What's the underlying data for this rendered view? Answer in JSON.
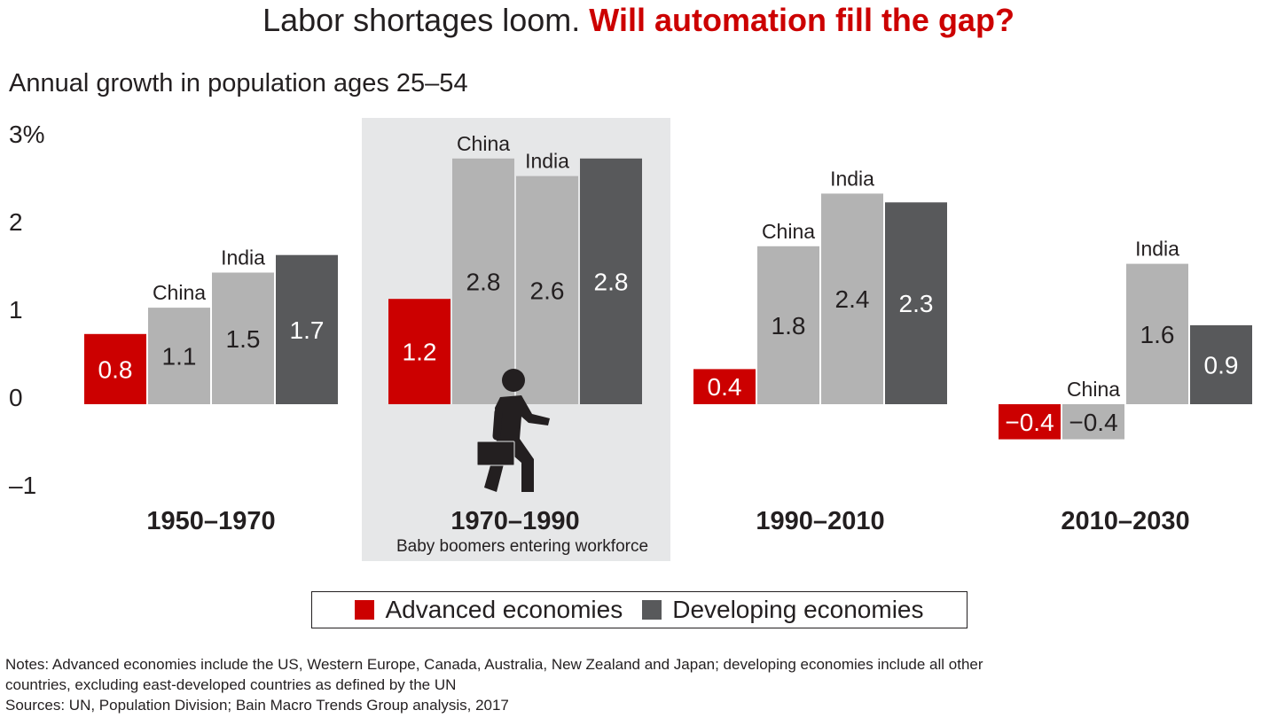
{
  "title": {
    "part1": "Labor shortages loom. ",
    "part2": "Will automation fill the gap?"
  },
  "chart_data": {
    "type": "bar",
    "title": "Labor shortages loom. Will automation fill the gap?",
    "ylabel": "Annual growth in population ages 25–54",
    "ylim": [
      -1,
      3
    ],
    "yticks": [
      "3%",
      "2",
      "1",
      "0",
      "–1"
    ],
    "ytick_values": [
      3,
      2,
      1,
      0,
      -1
    ],
    "categories": [
      "1950–1970",
      "1970–1990",
      "1990–2010",
      "2010–2030"
    ],
    "highlight": {
      "category": "1970–1990",
      "annotation": "Baby boomers entering workforce",
      "icon": "walking-businessman-icon"
    },
    "bar_labels": [
      "",
      "China",
      "India",
      ""
    ],
    "series": [
      {
        "name": "Advanced economies",
        "color": "#cc0000",
        "values": [
          0.8,
          1.2,
          0.4,
          -0.4
        ],
        "labels": [
          "0.8",
          "1.2",
          "0.4",
          "−0.4"
        ]
      },
      {
        "name": "China",
        "color": "#b3b3b3",
        "values": [
          1.1,
          2.8,
          1.8,
          -0.4
        ],
        "labels": [
          "1.1",
          "2.8",
          "1.8",
          "−0.4"
        ]
      },
      {
        "name": "India",
        "color": "#b3b3b3",
        "values": [
          1.5,
          2.6,
          2.4,
          1.6
        ],
        "labels": [
          "1.5",
          "2.6",
          "2.4",
          "1.6"
        ]
      },
      {
        "name": "Developing economies",
        "color": "#58595b",
        "values": [
          1.7,
          2.8,
          2.3,
          0.9
        ],
        "labels": [
          "1.7",
          "2.8",
          "2.3",
          "0.9"
        ]
      }
    ],
    "grid": false,
    "legend": "bottom-center"
  },
  "legend": {
    "items": [
      {
        "label": "Advanced economies",
        "color": "#cc0000"
      },
      {
        "label": "Developing economies",
        "color": "#58595b"
      }
    ]
  },
  "notes": {
    "line1": "Notes: Advanced economies include the US, Western Europe, Canada, Australia, New Zealand and Japan; developing economies include all other",
    "line2": "countries, excluding east-developed countries as defined by the UN",
    "line3": "Sources: UN, Population Division; Bain Macro Trends Group analysis, 2017"
  }
}
